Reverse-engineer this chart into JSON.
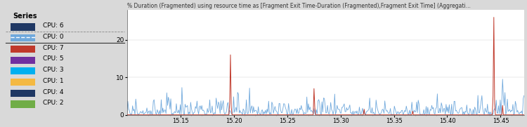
{
  "ylabel": "% Duration (Fragmented) using resource time as [Fragment Exit Time-Duration (Fragmented),Fragment Exit Time] (Aggregati...",
  "xlabel_ticks": [
    "15.15",
    "15.20",
    "15.25",
    "15.30",
    "15.35",
    "15.40",
    "15.45"
  ],
  "xlim": [
    15.1,
    15.472
  ],
  "ylim": [
    0,
    28
  ],
  "yticks": [
    0,
    10,
    20
  ],
  "legend_entries": [
    {
      "label": "CPU: 6",
      "color": "#1f3864",
      "style": "solid"
    },
    {
      "label": "CPU: 0",
      "color": "#6fa8dc",
      "style": "dashed"
    },
    {
      "label": "CPU: 7",
      "color": "#c0392b",
      "style": "solid"
    },
    {
      "label": "CPU: 5",
      "color": "#7030a0",
      "style": "solid"
    },
    {
      "label": "CPU: 3",
      "color": "#00b0f0",
      "style": "solid"
    },
    {
      "label": "CPU: 1",
      "color": "#f4b942",
      "style": "solid"
    },
    {
      "label": "CPU: 4",
      "color": "#1f3864",
      "style": "solid"
    },
    {
      "label": "CPU: 2",
      "color": "#70ad47",
      "style": "solid"
    }
  ],
  "panel_bg": "#d9d9d9",
  "chart_bg": "#ffffff"
}
